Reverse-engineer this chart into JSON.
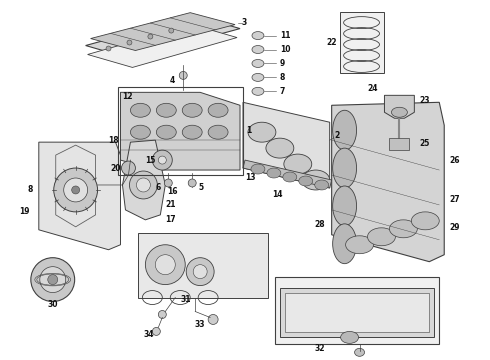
{
  "bg_color": "#ffffff",
  "line_color": "#404040",
  "label_color": "#111111",
  "fig_width": 4.9,
  "fig_height": 3.6,
  "dpi": 100,
  "face_color": "#e8e8e8",
  "face_color2": "#d0d0d0",
  "face_color3": "#f0f0f0"
}
